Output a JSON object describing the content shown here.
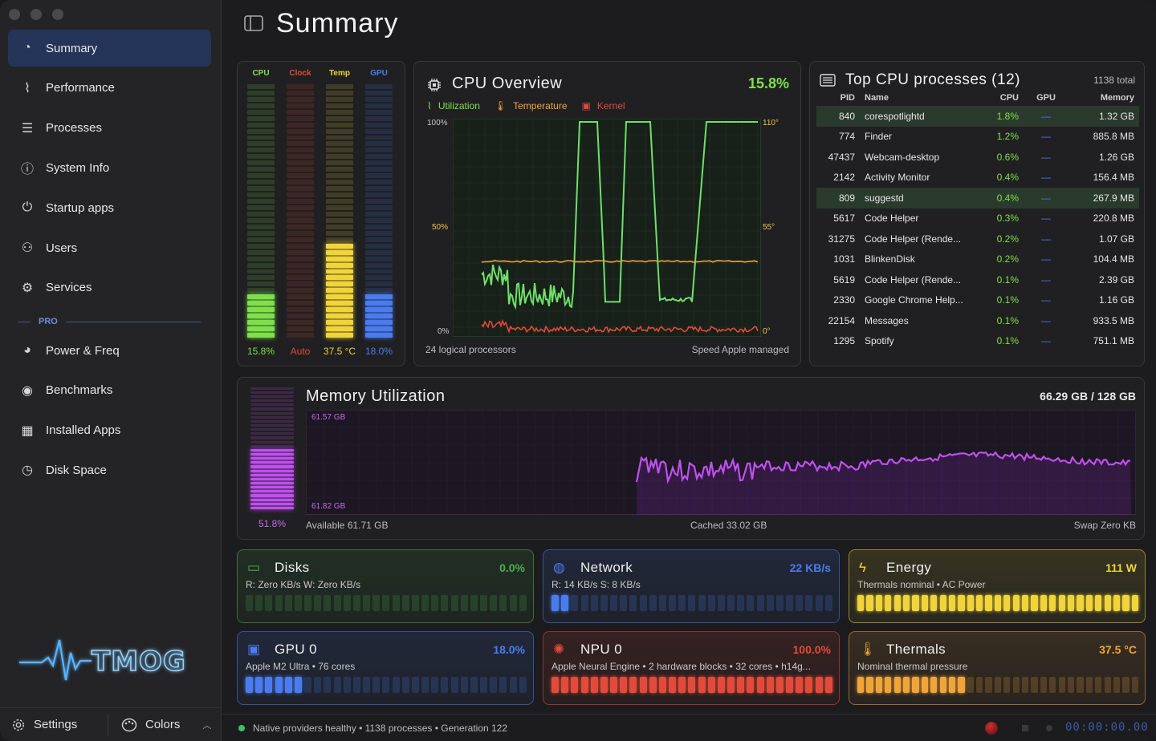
{
  "window": {
    "title": "Summary"
  },
  "sidebar": {
    "items": [
      {
        "label": "Summary",
        "icon": "gauge-icon",
        "active": true
      },
      {
        "label": "Performance",
        "icon": "pulse-icon"
      },
      {
        "label": "Processes",
        "icon": "list-icon"
      },
      {
        "label": "System Info",
        "icon": "info-icon"
      },
      {
        "label": "Startup apps",
        "icon": "power-icon"
      },
      {
        "label": "Users",
        "icon": "users-icon"
      },
      {
        "label": "Services",
        "icon": "gears-icon"
      }
    ],
    "pro_label": "PRO",
    "pro_items": [
      {
        "label": "Power & Freq",
        "icon": "speedometer-icon"
      },
      {
        "label": "Benchmarks",
        "icon": "stopwatch-icon"
      },
      {
        "label": "Installed Apps",
        "icon": "grid-icon"
      },
      {
        "label": "Disk Space",
        "icon": "pie-icon"
      }
    ],
    "logo_text": "TMOG",
    "settings_label": "Settings",
    "colors_label": "Colors"
  },
  "meters": {
    "labels": [
      "CPU",
      "Clock",
      "Temp",
      "GPU"
    ],
    "values": [
      "15.8%",
      "Auto",
      "37.5 °C",
      "18.0%"
    ],
    "levels": [
      0.158,
      0,
      0.375,
      0.18
    ],
    "colors": [
      "#7ee04a",
      "#e24a3a",
      "#f0d43a",
      "#4a7cf0"
    ]
  },
  "cpu_overview": {
    "title": "CPU Overview",
    "value": "15.8%",
    "legend": [
      "Utilization",
      "Temperature",
      "Kernel"
    ],
    "y_left": [
      "100%",
      "50%",
      "0%"
    ],
    "y_right": [
      "110°",
      "55°",
      "0°"
    ],
    "footer_left": "24 logical processors",
    "footer_right": "Speed Apple managed"
  },
  "top_processes": {
    "title": "Top CPU processes (12)",
    "total": "1138 total",
    "headers": [
      "PID",
      "Name",
      "CPU",
      "GPU",
      "Memory"
    ],
    "rows": [
      {
        "pid": "840",
        "name": "corespotlightd",
        "cpu": "1.8%",
        "gpu": "—",
        "mem": "1.32 GB",
        "hl": true
      },
      {
        "pid": "774",
        "name": "Finder",
        "cpu": "1.2%",
        "gpu": "—",
        "mem": "885.8 MB"
      },
      {
        "pid": "47437",
        "name": "Webcam-desktop",
        "cpu": "0.6%",
        "gpu": "—",
        "mem": "1.26 GB"
      },
      {
        "pid": "2142",
        "name": "Activity Monitor",
        "cpu": "0.4%",
        "gpu": "—",
        "mem": "156.4 MB"
      },
      {
        "pid": "809",
        "name": "suggestd",
        "cpu": "0.4%",
        "gpu": "—",
        "mem": "267.9 MB",
        "hl": true
      },
      {
        "pid": "5617",
        "name": "Code Helper",
        "cpu": "0.3%",
        "gpu": "—",
        "mem": "220.8 MB"
      },
      {
        "pid": "31275",
        "name": "Code Helper (Rende...",
        "cpu": "0.2%",
        "gpu": "—",
        "mem": "1.07 GB"
      },
      {
        "pid": "1031",
        "name": "BlinkenDisk",
        "cpu": "0.2%",
        "gpu": "—",
        "mem": "104.4 MB"
      },
      {
        "pid": "5619",
        "name": "Code Helper (Rende...",
        "cpu": "0.1%",
        "gpu": "—",
        "mem": "2.39 GB"
      },
      {
        "pid": "2330",
        "name": "Google Chrome Help...",
        "cpu": "0.1%",
        "gpu": "—",
        "mem": "1.16 GB"
      },
      {
        "pid": "22154",
        "name": "Messages",
        "cpu": "0.1%",
        "gpu": "—",
        "mem": "933.5 MB"
      },
      {
        "pid": "1295",
        "name": "Spotify",
        "cpu": "0.1%",
        "gpu": "—",
        "mem": "751.1 MB"
      }
    ]
  },
  "memory": {
    "title": "Memory Utilization",
    "value": "66.29 GB / 128 GB",
    "percent": "51.8%",
    "level": 0.518,
    "max_label": "61.57 GB",
    "min_label": "61.82 GB",
    "available": "Available 61.71 GB",
    "cached": "Cached 33.02 GB",
    "swap": "Swap Zero KB"
  },
  "cards": [
    {
      "id": "disks",
      "title": "Disks",
      "value": "0.0%",
      "sub": "R: Zero KB/s  W: Zero KB/s",
      "color": "#4caf50",
      "icon": "disk-icon",
      "fill": 0
    },
    {
      "id": "network",
      "title": "Network",
      "value": "22 KB/s",
      "sub": "R: 14 KB/s  S: 8 KB/s",
      "color": "#4a7cf0",
      "icon": "globe-icon",
      "fill": 0.06
    },
    {
      "id": "energy",
      "title": "Energy",
      "value": "111 W",
      "sub": "Thermals nominal • AC Power",
      "color": "#f0d43a",
      "icon": "bolt-icon",
      "fill": 1
    },
    {
      "id": "gpu",
      "title": "GPU 0",
      "value": "18.0%",
      "sub": "Apple M2 Ultra • 76 cores",
      "color": "#4a7cf0",
      "icon": "monitor-icon",
      "fill": 0.2
    },
    {
      "id": "npu",
      "title": "NPU 0",
      "value": "100.0%",
      "sub": "Apple Neural Engine • 2 hardware blocks • 32 cores • h14g...",
      "color": "#e24a3a",
      "icon": "brain-icon",
      "fill": 1
    },
    {
      "id": "thermals",
      "title": "Thermals",
      "value": "37.5 °C",
      "sub": "Nominal thermal pressure",
      "color": "#f0a43a",
      "icon": "thermometer-icon",
      "fill": 0.375
    }
  ],
  "status": {
    "text": "Native providers healthy • 1138 processes • Generation 122",
    "clock": "00:00:00.00"
  }
}
